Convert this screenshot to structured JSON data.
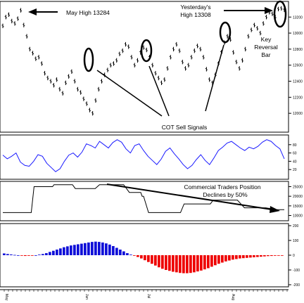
{
  "chart_data": [
    {
      "panel": "price",
      "type": "bar",
      "ylim": [
        11800,
        13360
      ],
      "ticks": [
        "13200",
        "13000",
        "12800",
        "12600",
        "12400",
        "12200",
        "12000"
      ],
      "tick_values": [
        13200,
        13000,
        12800,
        12600,
        12400,
        12200,
        12000
      ],
      "values": [
        13090,
        13200,
        13230,
        13150,
        13120,
        13180,
        13284,
        13100,
        12960,
        12800,
        12750,
        12680,
        12700,
        12620,
        12500,
        12440,
        12400,
        12350,
        12420,
        12300,
        12250,
        12380,
        12460,
        12520,
        12400,
        12300,
        12260,
        12180,
        12120,
        12040,
        12000,
        12160,
        12300,
        12400,
        12480,
        12540,
        12600,
        12620,
        12660,
        12740,
        12780,
        12860,
        12830,
        12700,
        12600,
        12660,
        12760,
        12820,
        12790,
        12700,
        12600,
        12500,
        12440,
        12380,
        12420,
        12560,
        12700,
        12800,
        12860,
        12780,
        12640,
        12560,
        12600,
        12700,
        12780,
        12840,
        12800,
        12700,
        12550,
        12420,
        12380,
        12480,
        12620,
        12760,
        12880,
        12960,
        12920,
        12760,
        12640,
        12560,
        12660,
        12800,
        12960,
        13040,
        13100,
        13060,
        13000,
        13120,
        13200,
        13260,
        13240,
        13200,
        13300,
        13308,
        13290
      ],
      "annotations": {
        "may_high": "May High 13284",
        "yesterday_l1": "Yesterday's",
        "yesterday_l2": "High 13308",
        "key_reversal": [
          "Key",
          "Reversal",
          "Bar"
        ],
        "cot_signals": "COT Sell Signals"
      }
    },
    {
      "panel": "oscillator",
      "type": "line",
      "ylim": [
        0,
        100
      ],
      "ticks": [
        "80",
        "60",
        "40",
        "20"
      ],
      "tick_values": [
        80,
        60,
        40,
        20
      ],
      "values": [
        55,
        46,
        52,
        60,
        38,
        30,
        28,
        40,
        56,
        52,
        35,
        25,
        15,
        22,
        40,
        55,
        60,
        50,
        62,
        82,
        78,
        72,
        88,
        80,
        72,
        85,
        92,
        86,
        70,
        60,
        78,
        82,
        66,
        52,
        42,
        32,
        45,
        64,
        72,
        58,
        46,
        32,
        22,
        30,
        44,
        56,
        42,
        32,
        48,
        66,
        74,
        84,
        88,
        80,
        72,
        66,
        74,
        70,
        76,
        86,
        92,
        88,
        78,
        70,
        46
      ]
    },
    {
      "panel": "commercials",
      "type": "line",
      "ylim": [
        8000,
        27000
      ],
      "ticks": [
        "25000",
        "20000",
        "15000",
        "10000"
      ],
      "tick_values": [
        25000,
        20000,
        15000,
        10000
      ],
      "x": [
        0,
        40,
        44,
        70,
        72,
        98,
        102,
        130,
        136,
        170,
        178,
        194,
        196,
        198,
        205,
        250,
        255,
        292,
        296,
        330,
        340,
        370,
        385,
        396
      ],
      "values": [
        11500,
        11500,
        25000,
        25000,
        26000,
        26000,
        24000,
        24000,
        26000,
        26000,
        22000,
        22000,
        20000,
        20000,
        11500,
        11500,
        16000,
        16000,
        18000,
        18000,
        14000,
        14000,
        13000,
        13000
      ],
      "annotation": [
        "Commercial Traders Position",
        "Declines by 50%"
      ]
    },
    {
      "panel": "momentum",
      "type": "bar",
      "ylim": [
        -200,
        200
      ],
      "ticks": [
        "200",
        "100",
        "0",
        "-100",
        "-200"
      ],
      "tick_values": [
        200,
        100,
        0,
        -100,
        -200
      ],
      "colors": {
        "positive": "#1010d8",
        "negative": "#ee0000"
      },
      "values": [
        12,
        8,
        5,
        2,
        0,
        -3,
        -5,
        -4,
        -2,
        0,
        4,
        8,
        14,
        22,
        30,
        38,
        46,
        54,
        60,
        66,
        70,
        74,
        78,
        82,
        86,
        90,
        92,
        90,
        86,
        80,
        72,
        62,
        50,
        38,
        26,
        14,
        4,
        -4,
        -12,
        -22,
        -34,
        -46,
        -58,
        -70,
        -82,
        -92,
        -100,
        -106,
        -112,
        -116,
        -120,
        -122,
        -122,
        -120,
        -116,
        -110,
        -104,
        -96,
        -88,
        -78,
        -68,
        -58,
        -50,
        -42,
        -36,
        -30,
        -26,
        -22,
        -20,
        -18,
        -16,
        -14,
        -12,
        -10,
        -8,
        -6,
        -5,
        -4,
        -3,
        -2
      ]
    }
  ],
  "x_axis": {
    "labels": [
      "May",
      "Jun",
      "Jul",
      "Aug"
    ],
    "positions": [
      6,
      120,
      208,
      328
    ]
  },
  "colors": {
    "frame": "#000000",
    "price": "#000000",
    "ellipse": "#000000"
  }
}
